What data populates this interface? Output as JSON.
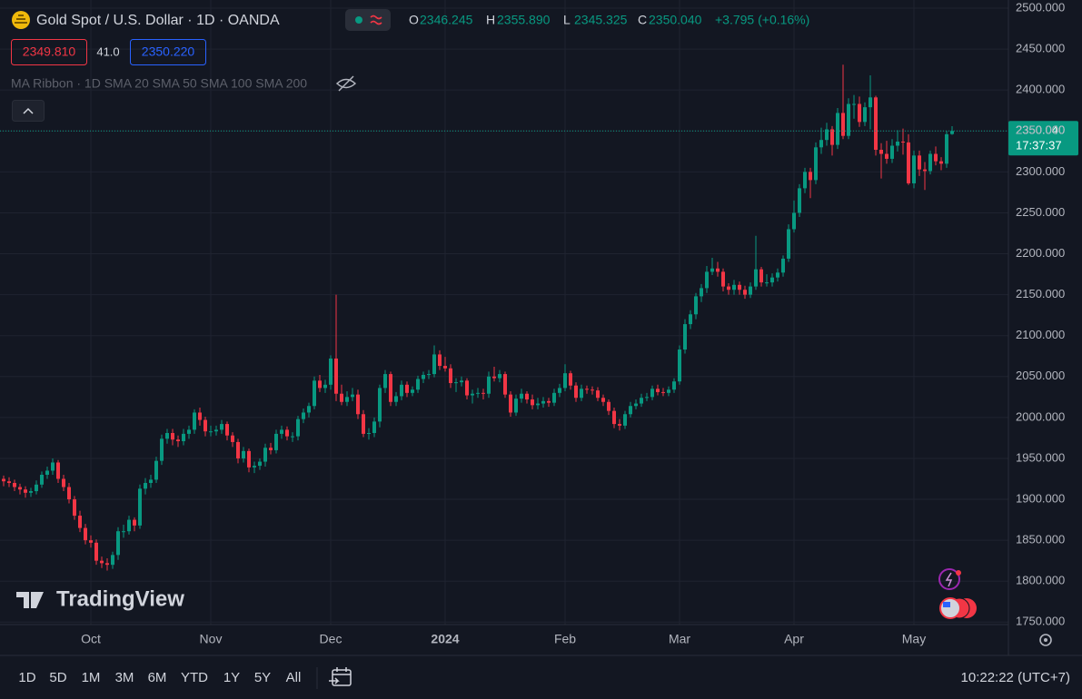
{
  "chart_data": {
    "type": "candlestick",
    "title": "Gold Spot / U.S. Dollar · 1D · OANDA",
    "ohlc_names": [
      "O",
      "H",
      "L",
      "C"
    ],
    "ohlc_labels": [
      "2346.245",
      "2355.890",
      "2345.325",
      "2350.040"
    ],
    "change": "+3.795 (+0.16%)",
    "bid": "2349.810",
    "spread": "41.0",
    "ask": "2350.220",
    "indicator": "MA Ribbon · 1D SMA 20 SMA 50 SMA 100 SMA 200",
    "countdown": "17:37:37",
    "up_color": "#089981",
    "down_color": "#f23645",
    "grid": true,
    "ylim": [
      1747,
      2510
    ],
    "yticks": [
      {
        "value": 1750,
        "label": "1750.000"
      },
      {
        "value": 1800,
        "label": "1800.000"
      },
      {
        "value": 1850,
        "label": "1850.000"
      },
      {
        "value": 1900,
        "label": "1900.000"
      },
      {
        "value": 1950,
        "label": "1950.000"
      },
      {
        "value": 2000,
        "label": "2000.000"
      },
      {
        "value": 2050,
        "label": "2050.000"
      },
      {
        "value": 2100,
        "label": "2100.000"
      },
      {
        "value": 2150,
        "label": "2150.000"
      },
      {
        "value": 2200,
        "label": "2200.000"
      },
      {
        "value": 2250,
        "label": "2250.000"
      },
      {
        "value": 2300,
        "label": "2300.000"
      },
      {
        "value": 2350,
        "label": "2350.000"
      },
      {
        "value": 2400,
        "label": "2400.000"
      },
      {
        "value": 2450,
        "label": "2450.000"
      },
      {
        "value": 2500,
        "label": "2500.000"
      }
    ],
    "xticks": [
      {
        "value": 16,
        "label": "Oct"
      },
      {
        "value": 38,
        "label": "Nov"
      },
      {
        "value": 60,
        "label": "Dec"
      },
      {
        "value": 81,
        "label": "2024"
      },
      {
        "value": 103,
        "label": "Feb"
      },
      {
        "value": 124,
        "label": "Mar"
      },
      {
        "value": 145,
        "label": "Apr"
      },
      {
        "value": 167,
        "label": "May"
      }
    ],
    "candles": [
      [
        1925,
        1929,
        1916,
        1922
      ],
      [
        1922,
        1927,
        1915,
        1920
      ],
      [
        1920,
        1924,
        1910,
        1915
      ],
      [
        1915,
        1919,
        1906,
        1912
      ],
      [
        1912,
        1916,
        1902,
        1908
      ],
      [
        1908,
        1914,
        1903,
        1910
      ],
      [
        1910,
        1923,
        1906,
        1918
      ],
      [
        1918,
        1934,
        1914,
        1930
      ],
      [
        1930,
        1940,
        1925,
        1935
      ],
      [
        1935,
        1950,
        1930,
        1945
      ],
      [
        1945,
        1948,
        1920,
        1925
      ],
      [
        1925,
        1930,
        1910,
        1915
      ],
      [
        1915,
        1920,
        1895,
        1900
      ],
      [
        1900,
        1904,
        1875,
        1880
      ],
      [
        1880,
        1886,
        1860,
        1865
      ],
      [
        1865,
        1870,
        1845,
        1850
      ],
      [
        1850,
        1856,
        1841,
        1847
      ],
      [
        1847,
        1851,
        1820,
        1825
      ],
      [
        1825,
        1830,
        1816,
        1822
      ],
      [
        1822,
        1828,
        1813,
        1820
      ],
      [
        1820,
        1836,
        1815,
        1832
      ],
      [
        1832,
        1866,
        1826,
        1861
      ],
      [
        1861,
        1869,
        1853,
        1861
      ],
      [
        1861,
        1880,
        1857,
        1875
      ],
      [
        1875,
        1878,
        1861,
        1868
      ],
      [
        1868,
        1918,
        1864,
        1913
      ],
      [
        1913,
        1926,
        1906,
        1920
      ],
      [
        1920,
        1930,
        1914,
        1924
      ],
      [
        1924,
        1952,
        1920,
        1947
      ],
      [
        1947,
        1979,
        1942,
        1974
      ],
      [
        1974,
        1986,
        1968,
        1981
      ],
      [
        1981,
        1986,
        1966,
        1973
      ],
      [
        1973,
        1978,
        1964,
        1971
      ],
      [
        1971,
        1986,
        1966,
        1980
      ],
      [
        1980,
        1990,
        1974,
        1985
      ],
      [
        1985,
        2010,
        1980,
        2006
      ],
      [
        2006,
        2012,
        1990,
        1997
      ],
      [
        1997,
        2001,
        1977,
        1983
      ],
      [
        1983,
        1990,
        1977,
        1983
      ],
      [
        1983,
        1990,
        1978,
        1985
      ],
      [
        1985,
        1997,
        1980,
        1992
      ],
      [
        1992,
        1995,
        1972,
        1978
      ],
      [
        1978,
        1982,
        1964,
        1970
      ],
      [
        1970,
        1974,
        1944,
        1950
      ],
      [
        1950,
        1964,
        1945,
        1959
      ],
      [
        1959,
        1962,
        1933,
        1939
      ],
      [
        1939,
        1946,
        1932,
        1941
      ],
      [
        1941,
        1950,
        1936,
        1946
      ],
      [
        1946,
        1968,
        1940,
        1963
      ],
      [
        1963,
        1969,
        1955,
        1960
      ],
      [
        1960,
        1985,
        1956,
        1980
      ],
      [
        1980,
        1990,
        1974,
        1985
      ],
      [
        1985,
        1989,
        1972,
        1977
      ],
      [
        1977,
        1982,
        1970,
        1977
      ],
      [
        1977,
        2002,
        1972,
        1998
      ],
      [
        1998,
        2011,
        1993,
        2006
      ],
      [
        2006,
        2018,
        2000,
        2014
      ],
      [
        2014,
        2050,
        2010,
        2045
      ],
      [
        2045,
        2052,
        2031,
        2036
      ],
      [
        2036,
        2046,
        2030,
        2040
      ],
      [
        2040,
        2076,
        2034,
        2072
      ],
      [
        2072,
        2150,
        2020,
        2029
      ],
      [
        2029,
        2040,
        2015,
        2019
      ],
      [
        2019,
        2032,
        2014,
        2025
      ],
      [
        2025,
        2036,
        2020,
        2028
      ],
      [
        2028,
        2034,
        1998,
        2004
      ],
      [
        2004,
        2009,
        1976,
        1980
      ],
      [
        1980,
        1987,
        1973,
        1981
      ],
      [
        1981,
        2000,
        1976,
        1995
      ],
      [
        1995,
        2040,
        1988,
        2036
      ],
      [
        2036,
        2058,
        2030,
        2053
      ],
      [
        2053,
        2056,
        2014,
        2019
      ],
      [
        2019,
        2031,
        2014,
        2026
      ],
      [
        2026,
        2045,
        2021,
        2040
      ],
      [
        2040,
        2044,
        2025,
        2030
      ],
      [
        2030,
        2038,
        2026,
        2034
      ],
      [
        2034,
        2051,
        2030,
        2047
      ],
      [
        2047,
        2056,
        2042,
        2052
      ],
      [
        2052,
        2058,
        2047,
        2053
      ],
      [
        2053,
        2088,
        2049,
        2077
      ],
      [
        2077,
        2082,
        2058,
        2063
      ],
      [
        2063,
        2074,
        2056,
        2060
      ],
      [
        2060,
        2065,
        2036,
        2042
      ],
      [
        2042,
        2048,
        2031,
        2043
      ],
      [
        2043,
        2050,
        2038,
        2045
      ],
      [
        2045,
        2048,
        2022,
        2027
      ],
      [
        2027,
        2034,
        2017,
        2029
      ],
      [
        2029,
        2036,
        2024,
        2030
      ],
      [
        2030,
        2035,
        2022,
        2029
      ],
      [
        2029,
        2056,
        2024,
        2050
      ],
      [
        2050,
        2062,
        2044,
        2048
      ],
      [
        2048,
        2058,
        2043,
        2053
      ],
      [
        2053,
        2056,
        2024,
        2028
      ],
      [
        2028,
        2032,
        2001,
        2006
      ],
      [
        2006,
        2028,
        2002,
        2023
      ],
      [
        2023,
        2035,
        2018,
        2029
      ],
      [
        2029,
        2032,
        2017,
        2022
      ],
      [
        2022,
        2028,
        2010,
        2015
      ],
      [
        2015,
        2024,
        2010,
        2017
      ],
      [
        2017,
        2025,
        2012,
        2020
      ],
      [
        2020,
        2024,
        2013,
        2018
      ],
      [
        2018,
        2035,
        2014,
        2030
      ],
      [
        2030,
        2041,
        2025,
        2036
      ],
      [
        2036,
        2065,
        2032,
        2054
      ],
      [
        2054,
        2057,
        2034,
        2039
      ],
      [
        2039,
        2043,
        2019,
        2024
      ],
      [
        2024,
        2040,
        2020,
        2035
      ],
      [
        2035,
        2039,
        2029,
        2034
      ],
      [
        2034,
        2038,
        2028,
        2033
      ],
      [
        2033,
        2037,
        2020,
        2024
      ],
      [
        2024,
        2028,
        2014,
        2019
      ],
      [
        2019,
        2022,
        2003,
        2008
      ],
      [
        2008,
        2012,
        1987,
        1992
      ],
      [
        1992,
        1998,
        1984,
        1990
      ],
      [
        1990,
        2008,
        1986,
        2004
      ],
      [
        2004,
        2019,
        2000,
        2014
      ],
      [
        2014,
        2022,
        2010,
        2017
      ],
      [
        2017,
        2029,
        2013,
        2024
      ],
      [
        2024,
        2030,
        2020,
        2025
      ],
      [
        2025,
        2039,
        2021,
        2035
      ],
      [
        2035,
        2040,
        2027,
        2031
      ],
      [
        2031,
        2036,
        2026,
        2030
      ],
      [
        2030,
        2038,
        2026,
        2034
      ],
      [
        2034,
        2048,
        2030,
        2044
      ],
      [
        2044,
        2088,
        2040,
        2083
      ],
      [
        2083,
        2120,
        2078,
        2114
      ],
      [
        2114,
        2131,
        2108,
        2126
      ],
      [
        2126,
        2152,
        2120,
        2148
      ],
      [
        2148,
        2163,
        2141,
        2158
      ],
      [
        2158,
        2185,
        2152,
        2178
      ],
      [
        2178,
        2195,
        2174,
        2182
      ],
      [
        2182,
        2190,
        2172,
        2178
      ],
      [
        2178,
        2182,
        2154,
        2160
      ],
      [
        2160,
        2164,
        2150,
        2156
      ],
      [
        2156,
        2168,
        2150,
        2162
      ],
      [
        2162,
        2166,
        2150,
        2156
      ],
      [
        2156,
        2161,
        2145,
        2150
      ],
      [
        2150,
        2165,
        2146,
        2160
      ],
      [
        2160,
        2222,
        2156,
        2181
      ],
      [
        2181,
        2184,
        2160,
        2165
      ],
      [
        2165,
        2175,
        2160,
        2165
      ],
      [
        2165,
        2176,
        2160,
        2171
      ],
      [
        2171,
        2182,
        2166,
        2177
      ],
      [
        2177,
        2198,
        2172,
        2194
      ],
      [
        2194,
        2236,
        2190,
        2230
      ],
      [
        2230,
        2265,
        2226,
        2250
      ],
      [
        2250,
        2285,
        2245,
        2280
      ],
      [
        2280,
        2305,
        2274,
        2300
      ],
      [
        2300,
        2305,
        2268,
        2290
      ],
      [
        2290,
        2336,
        2285,
        2330
      ],
      [
        2330,
        2354,
        2322,
        2339
      ],
      [
        2339,
        2360,
        2332,
        2352
      ],
      [
        2352,
        2356,
        2320,
        2333
      ],
      [
        2333,
        2378,
        2328,
        2372
      ],
      [
        2372,
        2431,
        2340,
        2344
      ],
      [
        2344,
        2390,
        2340,
        2383
      ],
      [
        2383,
        2394,
        2365,
        2383
      ],
      [
        2383,
        2392,
        2355,
        2361
      ],
      [
        2361,
        2385,
        2356,
        2379
      ],
      [
        2379,
        2418,
        2352,
        2391
      ],
      [
        2391,
        2393,
        2320,
        2327
      ],
      [
        2327,
        2335,
        2292,
        2322
      ],
      [
        2322,
        2338,
        2310,
        2316
      ],
      [
        2316,
        2340,
        2311,
        2332
      ],
      [
        2332,
        2351,
        2325,
        2337
      ],
      [
        2337,
        2353,
        2321,
        2336
      ],
      [
        2336,
        2346,
        2284,
        2286
      ],
      [
        2286,
        2326,
        2280,
        2320
      ],
      [
        2320,
        2326,
        2295,
        2303
      ],
      [
        2303,
        2312,
        2278,
        2301
      ],
      [
        2301,
        2326,
        2297,
        2322
      ],
      [
        2322,
        2331,
        2308,
        2313
      ],
      [
        2313,
        2318,
        2302,
        2310
      ],
      [
        2310,
        2350,
        2305,
        2346
      ],
      [
        2346.245,
        2355.89,
        2345.325,
        2350.04
      ]
    ]
  },
  "branding": "TradingView",
  "toolbar": {
    "ranges": [
      "1D",
      "5D",
      "1M",
      "3M",
      "6M",
      "YTD",
      "1Y",
      "5Y",
      "All"
    ],
    "clock": "10:22:22 (UTC+7)"
  }
}
